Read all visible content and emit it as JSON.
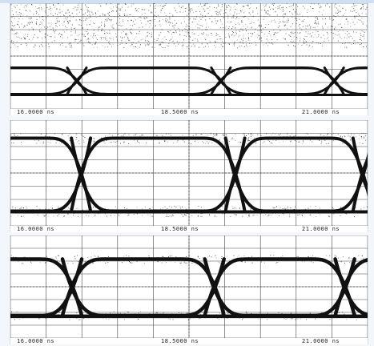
{
  "chart_data": [
    {
      "type": "eye-diagram",
      "x_tick_labels": [
        "16.0000 ns",
        "18.5000 ns",
        "21.0000 ns"
      ],
      "x_range_ns": [
        16.0,
        21.0
      ],
      "crossing_times_ns": [
        17.03,
        19.46,
        21.37
      ],
      "grid": true,
      "trace_color": "#111111",
      "grid_color": "#444444",
      "noise": "high"
    },
    {
      "type": "eye-diagram",
      "x_tick_labels": [
        "16.0000 ns",
        "18.5000 ns",
        "21.0000 ns"
      ],
      "x_range_ns": [
        16.0,
        21.0
      ],
      "crossing_times_ns": [
        17.1,
        19.7,
        21.85
      ],
      "grid": true,
      "trace_color": "#111111",
      "grid_color": "#444444",
      "noise": "medium"
    },
    {
      "type": "eye-diagram",
      "x_tick_labels": [
        "16.0000 ns",
        "18.5000 ns",
        "21.0000 ns"
      ],
      "x_range_ns": [
        16.0,
        21.0
      ],
      "crossing_times_ns": [
        16.95,
        19.35,
        21.55
      ],
      "grid": true,
      "trace_color": "#111111",
      "grid_color": "#444444",
      "noise": "low"
    }
  ]
}
